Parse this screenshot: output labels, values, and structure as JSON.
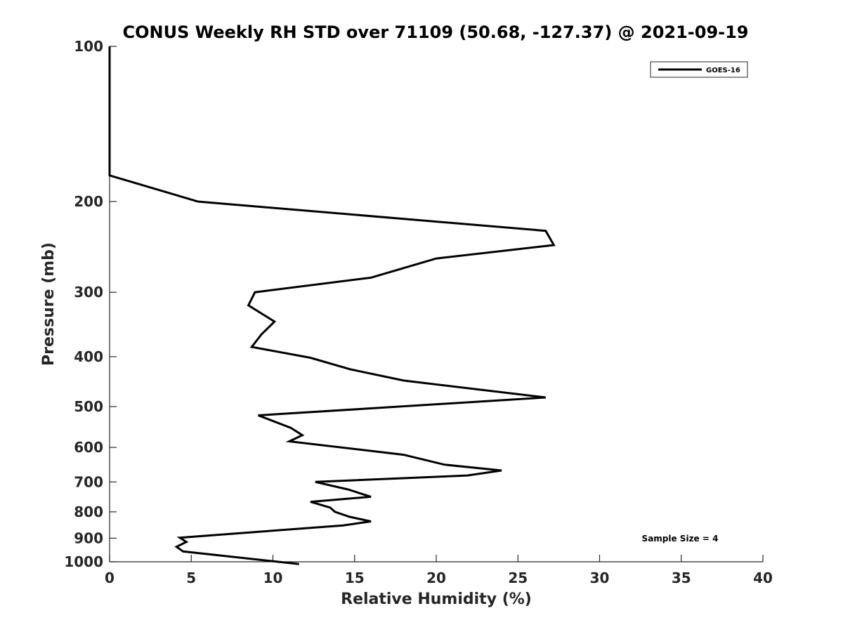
{
  "chart_data": {
    "type": "line",
    "title": "CONUS Weekly RH STD over 71109 (50.68, -127.37) @ 2021-09-19",
    "xlabel": "Relative Humidity (%)",
    "ylabel": "Pressure (mb)",
    "xlim": [
      0,
      40
    ],
    "ylim": [
      1000,
      100
    ],
    "yscale": "log",
    "y_reversed": true,
    "xticks": [
      0,
      5,
      10,
      15,
      20,
      25,
      30,
      35,
      40
    ],
    "yticks": [
      100,
      200,
      300,
      400,
      500,
      600,
      700,
      800,
      900,
      1000
    ],
    "grid": false,
    "legend_position": "top-right",
    "series": [
      {
        "name": "GOES-16",
        "color": "#000000",
        "x": [
          0,
          0,
          0,
          5.4,
          26.7,
          27.2,
          20.0,
          16.0,
          8.9,
          8.5,
          10.1,
          9.3,
          8.7,
          12.3,
          14.7,
          18.0,
          26.7,
          9.1,
          11.1,
          11.8,
          11.0,
          18.0,
          20.5,
          24.0,
          21.9,
          12.6,
          14.6,
          16.0,
          12.3,
          13.5,
          13.8,
          14.7,
          16.0,
          14.3,
          4.3,
          4.7,
          4.1,
          4.5,
          11.6
        ],
        "y": [
          100,
          140,
          178,
          200,
          228,
          243,
          258,
          281,
          300,
          318,
          342,
          362,
          383,
          402,
          423,
          445,
          480,
          520,
          550,
          568,
          584,
          620,
          648,
          665,
          680,
          700,
          724,
          748,
          765,
          785,
          800,
          818,
          835,
          850,
          898,
          915,
          935,
          955,
          1010
        ]
      }
    ],
    "annotations": [
      "Sample Size = 4"
    ]
  }
}
